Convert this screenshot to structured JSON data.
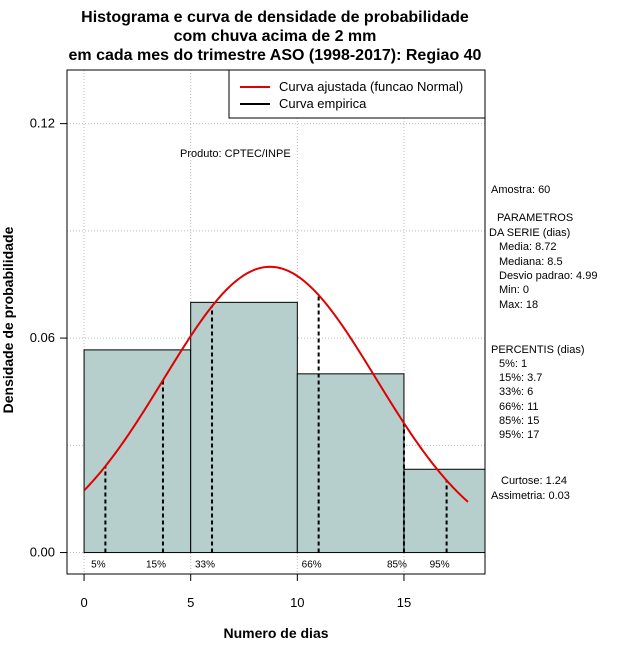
{
  "chart_data": {
    "type": "bar",
    "title_lines": [
      "Histograma e curva de densidade de probabilidade",
      "com chuva acima de 2 mm",
      "em cada mes do trimestre ASO (1998-2017): Regiao 40"
    ],
    "xlabel": "Numero de dias",
    "ylabel": "Densidade de probabilidade",
    "xlim": [
      -0.8,
      18.8
    ],
    "ylim": [
      -0.006,
      0.135
    ],
    "x_ticks": [
      0,
      5,
      10,
      15
    ],
    "x_tick_labels": [
      "0",
      "5",
      "10",
      "15"
    ],
    "y_ticks": [
      0.0,
      0.06,
      0.12
    ],
    "y_tick_labels": [
      "0.00",
      "0.06",
      "0.12"
    ],
    "grid": true,
    "histogram": {
      "bin_edges": [
        0,
        5,
        10,
        15,
        18.8
      ],
      "densities": [
        0.0567,
        0.07,
        0.05,
        0.0233
      ],
      "fill_color": "#b6cfcc"
    },
    "normal_curve": {
      "mean": 8.72,
      "sd": 4.99,
      "x_range": [
        0,
        18
      ],
      "color": "#e00000",
      "label": "Curva ajustada (funcao Normal)"
    },
    "empirical_label": "Curva empirica",
    "percentile_markers": [
      {
        "label": "5%",
        "x": 1
      },
      {
        "label": "15%",
        "x": 3.7
      },
      {
        "label": "33%",
        "x": 6
      },
      {
        "label": "66%",
        "x": 11
      },
      {
        "label": "85%",
        "x": 15
      },
      {
        "label": "95%",
        "x": 17
      }
    ],
    "annotation": "Produto: CPTEC/INPE"
  },
  "stats": {
    "amostra": "Amostra: 60",
    "parametros_header_1": "PARAMETROS",
    "parametros_header_2": "DA SERIE (dias)",
    "media": "Media: 8.72",
    "mediana": "Mediana: 8.5",
    "desvio": "Desvio padrao: 4.99",
    "min": "Min: 0",
    "max": "Max: 18",
    "percentis_header": "PERCENTIS (dias)",
    "p5": "5%: 1",
    "p15": "15%: 3.7",
    "p33": "33%: 6",
    "p66": "66%: 11",
    "p85": "85%: 15",
    "p95": "95%: 17",
    "curtose": "Curtose: 1.24",
    "assimetria": "Assimetria: 0.03"
  }
}
